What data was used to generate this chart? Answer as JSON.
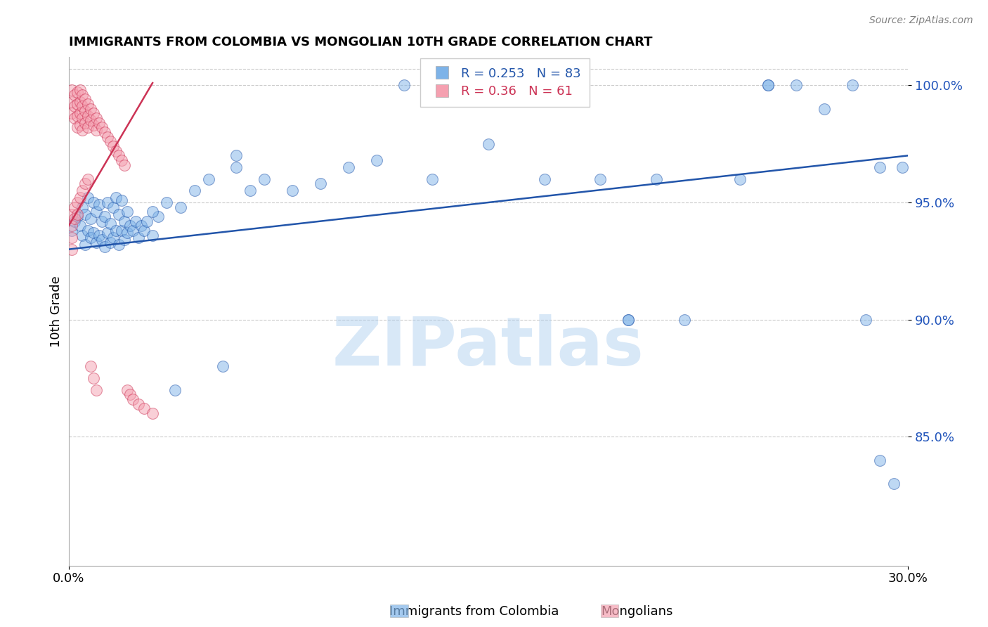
{
  "title": "IMMIGRANTS FROM COLOMBIA VS MONGOLIAN 10TH GRADE CORRELATION CHART",
  "source": "Source: ZipAtlas.com",
  "ylabel": "10th Grade",
  "ylim": [
    0.795,
    1.012
  ],
  "xlim": [
    0.0,
    0.3
  ],
  "blue_R": 0.253,
  "blue_N": 83,
  "pink_R": 0.36,
  "pink_N": 61,
  "blue_color": "#7EB3E8",
  "pink_color": "#F5A0B0",
  "trend_blue": "#2255AA",
  "trend_pink": "#CC3355",
  "watermark": "ZIPatlas",
  "watermark_color": "#AACCEE",
  "legend_blue_label": "Immigrants from Colombia",
  "legend_pink_label": "Mongolians",
  "blue_x": [
    0.001,
    0.002,
    0.003,
    0.004,
    0.005,
    0.005,
    0.006,
    0.006,
    0.007,
    0.007,
    0.008,
    0.008,
    0.009,
    0.009,
    0.01,
    0.01,
    0.011,
    0.011,
    0.012,
    0.012,
    0.013,
    0.013,
    0.014,
    0.014,
    0.015,
    0.015,
    0.016,
    0.016,
    0.017,
    0.017,
    0.018,
    0.018,
    0.019,
    0.019,
    0.02,
    0.02,
    0.021,
    0.021,
    0.022,
    0.023,
    0.024,
    0.025,
    0.026,
    0.027,
    0.028,
    0.03,
    0.032,
    0.035,
    0.038,
    0.04,
    0.045,
    0.05,
    0.055,
    0.06,
    0.065,
    0.07,
    0.08,
    0.09,
    0.1,
    0.11,
    0.13,
    0.15,
    0.17,
    0.19,
    0.2,
    0.21,
    0.22,
    0.24,
    0.25,
    0.26,
    0.27,
    0.28,
    0.285,
    0.29,
    0.295,
    0.298,
    0.03,
    0.06,
    0.12,
    0.18,
    0.2,
    0.25,
    0.29
  ],
  "blue_y": [
    0.938,
    0.942,
    0.944,
    0.94,
    0.936,
    0.948,
    0.932,
    0.945,
    0.938,
    0.952,
    0.935,
    0.943,
    0.937,
    0.95,
    0.933,
    0.946,
    0.936,
    0.949,
    0.934,
    0.942,
    0.931,
    0.944,
    0.937,
    0.95,
    0.933,
    0.941,
    0.935,
    0.948,
    0.938,
    0.952,
    0.932,
    0.945,
    0.938,
    0.951,
    0.934,
    0.942,
    0.937,
    0.946,
    0.94,
    0.938,
    0.942,
    0.935,
    0.94,
    0.938,
    0.942,
    0.936,
    0.944,
    0.95,
    0.87,
    0.948,
    0.955,
    0.96,
    0.88,
    0.965,
    0.955,
    0.96,
    0.955,
    0.958,
    0.965,
    0.968,
    0.96,
    0.975,
    0.96,
    0.96,
    0.9,
    0.96,
    0.9,
    0.96,
    1.0,
    1.0,
    0.99,
    1.0,
    0.9,
    0.84,
    0.83,
    0.965,
    0.946,
    0.97,
    1.0,
    1.0,
    0.9,
    1.0,
    0.965
  ],
  "pink_x": [
    0.001,
    0.001,
    0.001,
    0.002,
    0.002,
    0.002,
    0.003,
    0.003,
    0.003,
    0.003,
    0.004,
    0.004,
    0.004,
    0.004,
    0.005,
    0.005,
    0.005,
    0.005,
    0.006,
    0.006,
    0.006,
    0.007,
    0.007,
    0.007,
    0.008,
    0.008,
    0.009,
    0.009,
    0.01,
    0.01,
    0.011,
    0.012,
    0.013,
    0.014,
    0.015,
    0.016,
    0.017,
    0.018,
    0.019,
    0.02,
    0.021,
    0.022,
    0.023,
    0.025,
    0.027,
    0.03,
    0.001,
    0.001,
    0.001,
    0.001,
    0.002,
    0.002,
    0.003,
    0.003,
    0.004,
    0.005,
    0.006,
    0.007,
    0.008,
    0.009,
    0.01
  ],
  "pink_y": [
    0.998,
    0.993,
    0.988,
    0.996,
    0.991,
    0.986,
    0.997,
    0.992,
    0.987,
    0.982,
    0.998,
    0.993,
    0.988,
    0.983,
    0.996,
    0.991,
    0.986,
    0.981,
    0.994,
    0.989,
    0.984,
    0.992,
    0.987,
    0.982,
    0.99,
    0.985,
    0.988,
    0.983,
    0.986,
    0.981,
    0.984,
    0.982,
    0.98,
    0.978,
    0.976,
    0.974,
    0.972,
    0.97,
    0.968,
    0.966,
    0.87,
    0.868,
    0.866,
    0.864,
    0.862,
    0.86,
    0.945,
    0.94,
    0.935,
    0.93,
    0.948,
    0.943,
    0.95,
    0.945,
    0.952,
    0.955,
    0.958,
    0.96,
    0.88,
    0.875,
    0.87
  ],
  "blue_trend_x0": 0.0,
  "blue_trend_y0": 0.93,
  "blue_trend_x1": 0.3,
  "blue_trend_y1": 0.97,
  "pink_trend_x0": 0.0,
  "pink_trend_y0": 0.94,
  "pink_trend_x1": 0.03,
  "pink_trend_y1": 1.001
}
